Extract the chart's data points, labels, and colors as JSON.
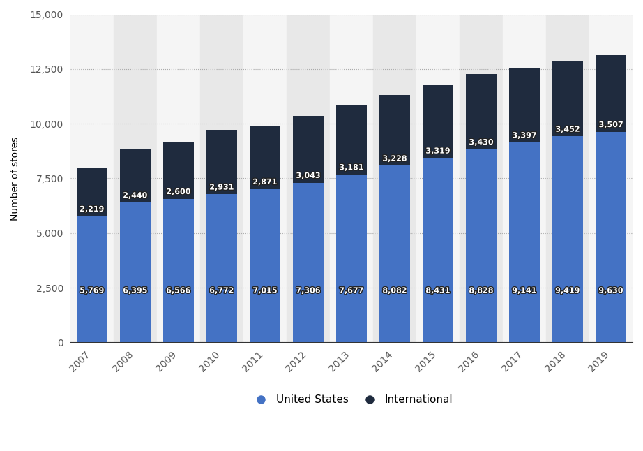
{
  "years": [
    "2007",
    "2008",
    "2009",
    "2010",
    "2011",
    "2012",
    "2013",
    "2014",
    "2015",
    "2016",
    "2017",
    "2018",
    "2019"
  ],
  "us_values": [
    5769,
    6395,
    6566,
    6772,
    7015,
    7306,
    7677,
    8082,
    8431,
    8828,
    9141,
    9419,
    9630
  ],
  "intl_values": [
    2219,
    2440,
    2600,
    2931,
    2871,
    3043,
    3181,
    3228,
    3319,
    3430,
    3397,
    3452,
    3507
  ],
  "us_color": "#4472C4",
  "intl_color": "#1F2B3E",
  "bg_color": "#ffffff",
  "col_bg_light": "#f5f5f5",
  "col_bg_dark": "#e8e8e8",
  "ylabel": "Number of stores",
  "ylim": [
    0,
    15000
  ],
  "yticks": [
    0,
    2500,
    5000,
    7500,
    10000,
    12500,
    15000
  ],
  "legend_labels": [
    "United States",
    "International"
  ],
  "bar_width": 0.72,
  "label_fontsize": 8.0
}
